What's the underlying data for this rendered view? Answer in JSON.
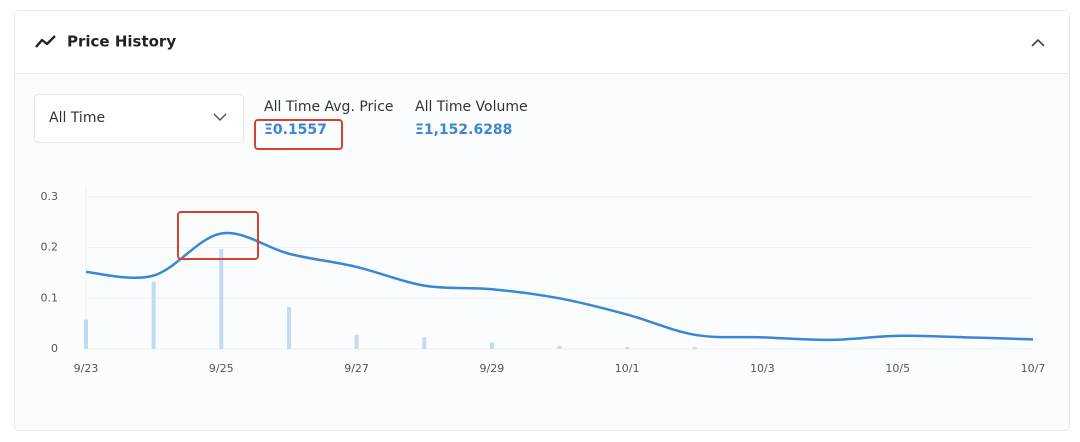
{
  "header": {
    "title": "Price History"
  },
  "filter": {
    "selected": "All Time"
  },
  "stats": [
    {
      "label": "All Time Avg. Price",
      "value": "Ξ0.1557"
    },
    {
      "label": "All Time Volume",
      "value": "Ξ1,152.6288"
    }
  ],
  "chart_data": {
    "type": "combo",
    "categories": [
      "9/23",
      null,
      "9/25",
      null,
      "9/27",
      null,
      "9/29",
      null,
      "10/1",
      null,
      "10/3",
      null,
      "10/5",
      null,
      "10/7"
    ],
    "series": [
      {
        "type": "bar",
        "color": "#c3daf2",
        "values": [
          0.058,
          0.133,
          0.197,
          0.083,
          0.028,
          0.023,
          0.013,
          0.006,
          0.004,
          0.004,
          0,
          0,
          0,
          0,
          0
        ]
      },
      {
        "type": "line",
        "color": "#3a86d4",
        "values": [
          0.152,
          0.145,
          0.228,
          0.188,
          0.162,
          0.125,
          0.118,
          0.1,
          0.068,
          0.028,
          0.023,
          0.018,
          0.026,
          0.023,
          0.019
        ]
      }
    ],
    "ylim": [
      0,
      0.3
    ],
    "yticks": [
      0,
      0.1,
      0.2,
      0.3
    ],
    "grid": true
  }
}
